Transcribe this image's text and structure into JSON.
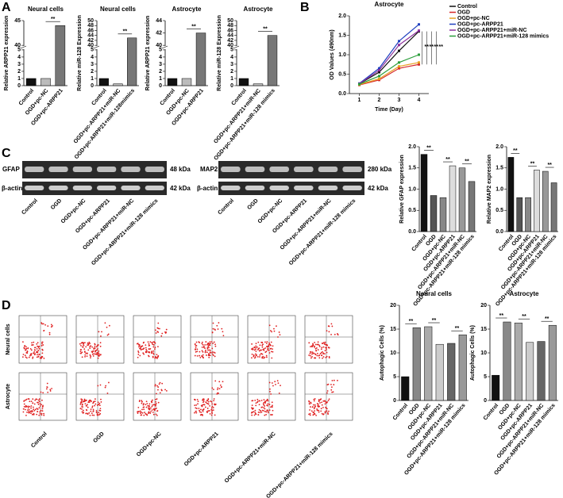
{
  "panels": {
    "letters": [
      "A",
      "B",
      "C",
      "D"
    ]
  },
  "blot": {
    "left": {
      "protein": "GFAP",
      "kda": "48 kDa",
      "control": "β-actin",
      "control_kda": "42 kDa"
    },
    "right": {
      "protein": "MAP2",
      "kda": "280 kDa",
      "control": "β-actin",
      "control_kda": "42 kDa"
    },
    "lanes": [
      "Control",
      "OGD",
      "OGD+pc-NC",
      "OGD+pc-ARPP21",
      "OGD+pc-ARPP21+miR-NC",
      "OGD+pc-ARPP21+miR-128 mimics"
    ]
  },
  "flow": {
    "rows": [
      "Neural cells",
      "Astrocyte"
    ],
    "columns": [
      "Control",
      "OGD",
      "OGD+pc-NC",
      "OGD+pc-ARPP21",
      "OGD+pc-ARPP21+miR-NC",
      "OGD+pc-ARPP21+miR-128 mimics"
    ]
  },
  "chart_data": [
    {
      "type": "bar",
      "title": "Neural cells",
      "ylabel": "Relative ARPP21 expression",
      "categories": [
        "Control",
        "OGD+pc-NC",
        "OGD+pc-ARPP21"
      ],
      "values": [
        1.0,
        1.0,
        44
      ],
      "colors": [
        "#111111",
        "#bbbbbb",
        "#777777"
      ],
      "ylim": [
        0,
        45
      ],
      "ybreak": [
        5,
        40
      ],
      "yticks": [
        0,
        1,
        2,
        3,
        4,
        5,
        40,
        45
      ],
      "annotations": [
        "**"
      ]
    },
    {
      "type": "bar",
      "title": "Neural cells",
      "ylabel": "Relative miR-128 Expression",
      "categories": [
        "Control",
        "OGD+pc-ARPP21+miR-NC",
        "OGD+pc-ARPP21+miR-128mimics"
      ],
      "values": [
        1.0,
        0.25,
        43
      ],
      "colors": [
        "#111111",
        "#bbbbbb",
        "#777777"
      ],
      "ylim": [
        0,
        50
      ],
      "ybreak": [
        5,
        40
      ],
      "yticks": [
        0,
        1,
        2,
        3,
        4,
        5,
        40,
        42,
        44,
        46,
        48,
        50
      ],
      "annotations": [
        "**"
      ]
    },
    {
      "type": "bar",
      "title": "Astrocyte",
      "ylabel": "Relative ARPP21 expression",
      "categories": [
        "Control",
        "OGD+pc-NC",
        "OGD+pc-ARPP21"
      ],
      "values": [
        1.0,
        1.0,
        42
      ],
      "colors": [
        "#111111",
        "#bbbbbb",
        "#777777"
      ],
      "ylim": [
        0,
        44
      ],
      "ybreak": [
        5,
        40
      ],
      "yticks": [
        0,
        1,
        2,
        3,
        4,
        5,
        40,
        42,
        44
      ],
      "annotations": [
        "**"
      ]
    },
    {
      "type": "bar",
      "title": "Astrocyte",
      "ylabel": "Relative miR-128 Expression",
      "categories": [
        "Control",
        "OGD+pc-ARPP21+miR-NC",
        "OGD+pc-ARPP21+miR-128 mimics"
      ],
      "values": [
        1.0,
        0.25,
        44
      ],
      "colors": [
        "#111111",
        "#bbbbbb",
        "#777777"
      ],
      "ylim": [
        0,
        50
      ],
      "ybreak": [
        5,
        40
      ],
      "yticks": [
        0,
        1,
        2,
        3,
        4,
        5,
        40,
        42,
        44,
        46,
        48,
        50
      ],
      "annotations": [
        "**"
      ]
    },
    {
      "type": "line",
      "title": "Astrocyte",
      "xlabel": "Time (Day)",
      "ylabel": "OD  Values (490nm)",
      "x": [
        1,
        2,
        3,
        4
      ],
      "xlim": [
        0.5,
        4.5
      ],
      "xticks": [
        1,
        2,
        3,
        4
      ],
      "ylim": [
        0,
        2
      ],
      "yticks": [
        {
          "value": 0,
          "label": "0.0"
        },
        {
          "value": 0.5,
          "label": "0.5"
        },
        {
          "value": 1,
          "label": "1.0"
        },
        {
          "value": 1.5,
          "label": "1.5"
        },
        {
          "value": 2,
          "label": "2.0"
        }
      ],
      "legend": "right",
      "series": [
        {
          "name": "Control",
          "color": "#111111",
          "values": [
            0.25,
            0.55,
            1.1,
            1.6
          ]
        },
        {
          "name": "OGD",
          "color": "#d62728",
          "values": [
            0.22,
            0.35,
            0.65,
            0.75
          ]
        },
        {
          "name": "OGD+pc-NC",
          "color": "#e8a020",
          "values": [
            0.23,
            0.38,
            0.7,
            0.8
          ]
        },
        {
          "name": "OGD+pc-ARPP21",
          "color": "#1f3fbf",
          "values": [
            0.26,
            0.65,
            1.35,
            1.78
          ]
        },
        {
          "name": "OGD+pc-ARPP21+miR-NC",
          "color": "#8b2f9c",
          "values": [
            0.25,
            0.6,
            1.25,
            1.62
          ]
        },
        {
          "name": "OGD+pc-ARPP21+miR-128 mimics",
          "color": "#2a9d3a",
          "values": [
            0.24,
            0.45,
            0.8,
            1.0
          ]
        }
      ],
      "annotations": [
        "**",
        "**",
        "**",
        "**"
      ]
    },
    {
      "type": "bar",
      "ylabel": "Relative GFAP expression",
      "categories": [
        "Control",
        "OGD",
        "OGD+pc-NC",
        "OGD+pc-ARPP21",
        "OGD+pc-ARPP21+miR-NC",
        "OGD+pc-ARPP21+miR-128 mimics"
      ],
      "values": [
        1.82,
        0.85,
        0.8,
        1.55,
        1.5,
        1.18
      ],
      "colors": [
        "#111111",
        "#555555",
        "#888888",
        "#dddddd",
        "#999999",
        "#777777"
      ],
      "ylim": [
        0,
        2
      ],
      "yticks": [
        {
          "value": 0,
          "label": "0.0"
        },
        {
          "value": 0.5,
          "label": "0.5"
        },
        {
          "value": 1,
          "label": "1.0"
        },
        {
          "value": 1.5,
          "label": "1.5"
        },
        {
          "value": 2,
          "label": "2.0"
        }
      ],
      "annotations": [
        "**",
        "**",
        "**"
      ]
    },
    {
      "type": "bar",
      "ylabel": "Relative MAP2 expression",
      "categories": [
        "Control",
        "OGD",
        "OGD+pc-NC",
        "OGD+pc-ARPP21",
        "OGD+pc-ARPP21+miR-NC",
        "OGD+pc-ARPP21+miR-128 mimics"
      ],
      "values": [
        1.75,
        0.8,
        0.8,
        1.45,
        1.42,
        1.15
      ],
      "colors": [
        "#111111",
        "#555555",
        "#888888",
        "#dddddd",
        "#999999",
        "#777777"
      ],
      "ylim": [
        0,
        2
      ],
      "yticks": [
        {
          "value": 0,
          "label": "0.0"
        },
        {
          "value": 0.5,
          "label": "0.5"
        },
        {
          "value": 1,
          "label": "1.0"
        },
        {
          "value": 1.5,
          "label": "1.5"
        },
        {
          "value": 2,
          "label": "2.0"
        }
      ],
      "annotations": [
        "**",
        "**",
        "**"
      ]
    },
    {
      "type": "bar",
      "title": "Neural cells",
      "ylabel": "Autophagic Cells (%)",
      "categories": [
        "Control",
        "OGD",
        "OGD+pc-NC",
        "OGD+pc-ARPP21",
        "OGD+pc-ARPP21+miR-NC",
        "OGD+pc-ARPP21+miR-128 mimics"
      ],
      "values": [
        5,
        15.3,
        15.5,
        11.8,
        12,
        13.8
      ],
      "colors": [
        "#111111",
        "#888888",
        "#aaaaaa",
        "#cccccc",
        "#666666",
        "#999999"
      ],
      "ylim": [
        0,
        20
      ],
      "yticks": [
        0,
        5,
        10,
        15,
        20
      ],
      "annotations": [
        "**",
        "**",
        "**"
      ]
    },
    {
      "type": "bar",
      "title": "Astrocyte",
      "ylabel": "Autophagic Cells (%)",
      "categories": [
        "Control",
        "OGD",
        "OGD+pc-NC",
        "OGD+pc-ARPP21",
        "OGD+pc-ARPP21+miR-NC",
        "OGD+pc-ARPP21+miR-128 mimics"
      ],
      "values": [
        5.3,
        16.5,
        16.3,
        12.2,
        12.4,
        15.8
      ],
      "colors": [
        "#111111",
        "#888888",
        "#aaaaaa",
        "#cccccc",
        "#666666",
        "#999999"
      ],
      "ylim": [
        0,
        20
      ],
      "yticks": [
        0,
        5,
        10,
        15,
        20
      ],
      "annotations": [
        "**",
        "**",
        "**"
      ]
    }
  ]
}
